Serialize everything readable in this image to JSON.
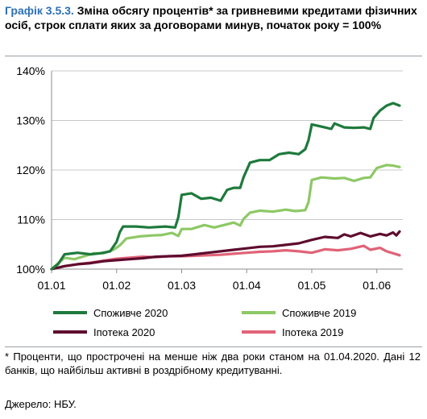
{
  "figure": {
    "number": "Графік 3.5.3.",
    "title": "Зміна обсягу процентів* за гривневими кредитами фізичних осіб, строк сплати яких за договорами минув, початок року = 100%"
  },
  "chart_data": {
    "type": "line",
    "title": "",
    "xlabel": "",
    "ylabel": "",
    "ylim": [
      100,
      140
    ],
    "yticks": [
      100,
      110,
      120,
      130,
      140
    ],
    "ytick_labels": [
      "100%",
      "110%",
      "120%",
      "130%",
      "140%"
    ],
    "xlim": [
      1,
      6.4
    ],
    "xticks": [
      1,
      2,
      3,
      4,
      5,
      6
    ],
    "xtick_labels": [
      "01.01",
      "01.02",
      "01.03",
      "01.04",
      "01.05",
      "01.06"
    ],
    "grid": "horizontal",
    "legend_position": "bottom",
    "series": [
      {
        "name": "Споживче 2020",
        "color": "#1e7a3c",
        "points": [
          [
            1,
            100
          ],
          [
            1.1,
            101
          ],
          [
            1.2,
            103
          ],
          [
            1.4,
            103.3
          ],
          [
            1.6,
            103
          ],
          [
            1.75,
            103.2
          ],
          [
            1.9,
            103.6
          ],
          [
            2.0,
            105.5
          ],
          [
            2.05,
            107.5
          ],
          [
            2.1,
            108.6
          ],
          [
            2.3,
            108.6
          ],
          [
            2.5,
            108.4
          ],
          [
            2.75,
            108.6
          ],
          [
            2.9,
            108.4
          ],
          [
            2.95,
            110.5
          ],
          [
            3.0,
            115
          ],
          [
            3.15,
            115.3
          ],
          [
            3.3,
            114.2
          ],
          [
            3.45,
            114.4
          ],
          [
            3.6,
            113.8
          ],
          [
            3.7,
            116
          ],
          [
            3.8,
            116.4
          ],
          [
            3.9,
            116.4
          ],
          [
            3.95,
            118.5
          ],
          [
            4.05,
            121.5
          ],
          [
            4.2,
            122
          ],
          [
            4.35,
            122
          ],
          [
            4.5,
            123.2
          ],
          [
            4.65,
            123.5
          ],
          [
            4.8,
            123.2
          ],
          [
            4.9,
            124.2
          ],
          [
            4.95,
            126
          ],
          [
            5.0,
            129.2
          ],
          [
            5.2,
            128.6
          ],
          [
            5.3,
            128.3
          ],
          [
            5.35,
            129.4
          ],
          [
            5.5,
            128.6
          ],
          [
            5.65,
            128.5
          ],
          [
            5.8,
            128.6
          ],
          [
            5.9,
            128.3
          ],
          [
            5.95,
            130.5
          ],
          [
            6.05,
            132
          ],
          [
            6.15,
            133
          ],
          [
            6.25,
            133.5
          ],
          [
            6.35,
            133
          ]
        ]
      },
      {
        "name": "Споживче 2019",
        "color": "#8dc865",
        "points": [
          [
            1,
            100
          ],
          [
            1.1,
            101.2
          ],
          [
            1.2,
            102.3
          ],
          [
            1.35,
            102
          ],
          [
            1.5,
            102.6
          ],
          [
            1.65,
            103.2
          ],
          [
            1.8,
            103.2
          ],
          [
            1.95,
            103.9
          ],
          [
            2.05,
            104.8
          ],
          [
            2.15,
            106.2
          ],
          [
            2.35,
            106.6
          ],
          [
            2.55,
            106.8
          ],
          [
            2.7,
            106.9
          ],
          [
            2.85,
            107.3
          ],
          [
            2.95,
            106.7
          ],
          [
            3.0,
            108.1
          ],
          [
            3.15,
            108.1
          ],
          [
            3.35,
            108.9
          ],
          [
            3.5,
            108.4
          ],
          [
            3.65,
            108.9
          ],
          [
            3.8,
            109.4
          ],
          [
            3.9,
            108.8
          ],
          [
            3.95,
            110.1
          ],
          [
            4.05,
            111.4
          ],
          [
            4.2,
            111.8
          ],
          [
            4.4,
            111.6
          ],
          [
            4.6,
            112
          ],
          [
            4.75,
            111.7
          ],
          [
            4.9,
            111.9
          ],
          [
            4.95,
            113.5
          ],
          [
            5.0,
            118
          ],
          [
            5.15,
            118.5
          ],
          [
            5.35,
            118.3
          ],
          [
            5.5,
            118.4
          ],
          [
            5.65,
            117.8
          ],
          [
            5.8,
            118.4
          ],
          [
            5.9,
            118.5
          ],
          [
            6.0,
            120.4
          ],
          [
            6.15,
            121
          ],
          [
            6.25,
            120.9
          ],
          [
            6.35,
            120.6
          ]
        ]
      },
      {
        "name": "Іпотека 2020",
        "color": "#5e0c2e",
        "points": [
          [
            1,
            100
          ],
          [
            1.2,
            100.6
          ],
          [
            1.4,
            101
          ],
          [
            1.6,
            101.2
          ],
          [
            1.8,
            101.6
          ],
          [
            2.0,
            101.8
          ],
          [
            2.2,
            102
          ],
          [
            2.4,
            102.2
          ],
          [
            2.6,
            102.5
          ],
          [
            2.8,
            102.6
          ],
          [
            3.0,
            102.7
          ],
          [
            3.2,
            103
          ],
          [
            3.4,
            103.3
          ],
          [
            3.6,
            103.6
          ],
          [
            3.8,
            103.9
          ],
          [
            4.0,
            104.2
          ],
          [
            4.2,
            104.5
          ],
          [
            4.4,
            104.6
          ],
          [
            4.6,
            104.9
          ],
          [
            4.8,
            105.2
          ],
          [
            5.0,
            105.9
          ],
          [
            5.2,
            106.5
          ],
          [
            5.4,
            106.3
          ],
          [
            5.5,
            107
          ],
          [
            5.6,
            106.6
          ],
          [
            5.75,
            107.3
          ],
          [
            5.9,
            106.6
          ],
          [
            6.05,
            107.1
          ],
          [
            6.15,
            106.8
          ],
          [
            6.25,
            107.4
          ],
          [
            6.3,
            106.8
          ],
          [
            6.35,
            107.6
          ]
        ]
      },
      {
        "name": "Іпотека 2019",
        "color": "#e06378",
        "points": [
          [
            1,
            100
          ],
          [
            1.2,
            100.6
          ],
          [
            1.4,
            101
          ],
          [
            1.6,
            101.3
          ],
          [
            1.8,
            101.7
          ],
          [
            2.0,
            102.1
          ],
          [
            2.2,
            102.3
          ],
          [
            2.4,
            102.5
          ],
          [
            2.6,
            102.4
          ],
          [
            2.8,
            102.6
          ],
          [
            3.0,
            102.6
          ],
          [
            3.2,
            102.7
          ],
          [
            3.4,
            102.8
          ],
          [
            3.6,
            102.9
          ],
          [
            3.8,
            103.1
          ],
          [
            4.0,
            103.3
          ],
          [
            4.2,
            103.5
          ],
          [
            4.4,
            103.6
          ],
          [
            4.6,
            103.8
          ],
          [
            4.8,
            103.6
          ],
          [
            5.0,
            103.3
          ],
          [
            5.2,
            104
          ],
          [
            5.4,
            103.8
          ],
          [
            5.6,
            104.1
          ],
          [
            5.8,
            104.7
          ],
          [
            5.9,
            103.9
          ],
          [
            6.05,
            104.3
          ],
          [
            6.15,
            103.6
          ],
          [
            6.25,
            103.2
          ],
          [
            6.35,
            102.8
          ]
        ]
      }
    ]
  },
  "legend": {
    "items": [
      {
        "label": "Споживче 2020",
        "color": "#1e7a3c"
      },
      {
        "label": "Споживче 2019",
        "color": "#8dc865"
      },
      {
        "label": "Іпотека 2020",
        "color": "#5e0c2e"
      },
      {
        "label": "Іпотека 2019",
        "color": "#e06378"
      }
    ]
  },
  "note": {
    "text": "* Проценти, що прострочені на менше ніж два роки станом на 01.04.2020. Дані 12 банків, що найбільш активні в роздрібному кредитуванні.",
    "source": "Джерело: НБУ."
  }
}
